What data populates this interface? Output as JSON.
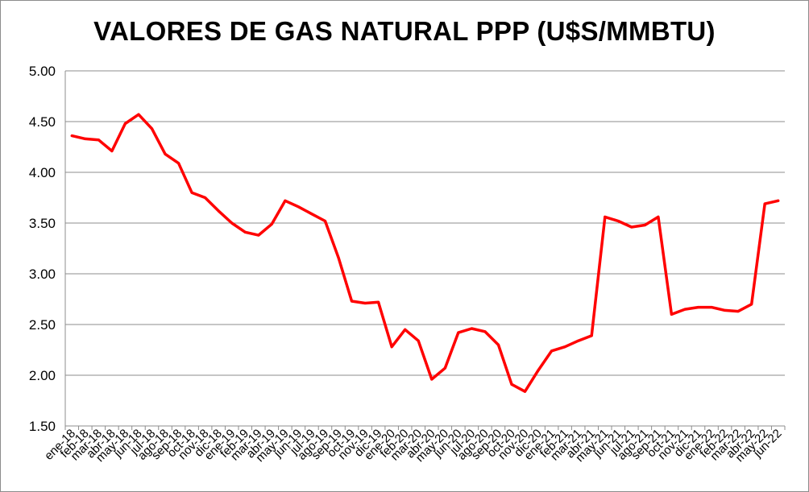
{
  "chart_data": {
    "type": "line",
    "title": "VALORES DE GAS NATURAL PPP (U$S/MMBTU)",
    "xlabel": "",
    "ylabel": "",
    "ylim": [
      1.5,
      5.0
    ],
    "ytick_step": 0.5,
    "y_decimals": 2,
    "grid": true,
    "legend": "none",
    "categories": [
      "ene-18",
      "feb-18",
      "mar-18",
      "abr-18",
      "may-18",
      "jun-18",
      "jul-18",
      "ago-18",
      "sep-18",
      "oct-18",
      "nov-18",
      "dic-18",
      "ene-19",
      "feb-19",
      "mar-19",
      "abr-19",
      "may-19",
      "jun-19",
      "jul-19",
      "ago-19",
      "sep-19",
      "oct-19",
      "nov-19",
      "dic-19",
      "ene-20",
      "feb-20",
      "mar-20",
      "abr-20",
      "may-20",
      "jun-20",
      "jul-20",
      "ago-20",
      "sep-20",
      "oct-20",
      "nov-20",
      "dic-20",
      "ene-21",
      "feb-21",
      "mar-21",
      "abr-21",
      "may-21",
      "jun-21",
      "jul-21",
      "ago-21",
      "sep-21",
      "oct-21",
      "nov-21",
      "dic-21",
      "ene-22",
      "feb-22",
      "mar-22",
      "abr-22",
      "may-22",
      "jun-22"
    ],
    "series": [
      {
        "color": "#ff0000",
        "values": [
          4.36,
          4.33,
          4.32,
          4.21,
          4.48,
          4.57,
          4.43,
          4.18,
          4.09,
          3.8,
          3.75,
          3.62,
          3.5,
          3.41,
          3.38,
          3.49,
          3.72,
          3.66,
          3.59,
          3.52,
          3.16,
          2.73,
          2.71,
          2.72,
          2.28,
          2.45,
          2.34,
          1.96,
          2.07,
          2.42,
          2.46,
          2.43,
          2.3,
          1.91,
          1.84,
          2.05,
          2.24,
          2.28,
          2.34,
          2.39,
          3.56,
          3.52,
          3.46,
          3.48,
          3.56,
          2.6,
          2.65,
          2.67,
          2.67,
          2.64,
          2.63,
          2.7,
          3.69,
          3.72
        ]
      }
    ]
  }
}
